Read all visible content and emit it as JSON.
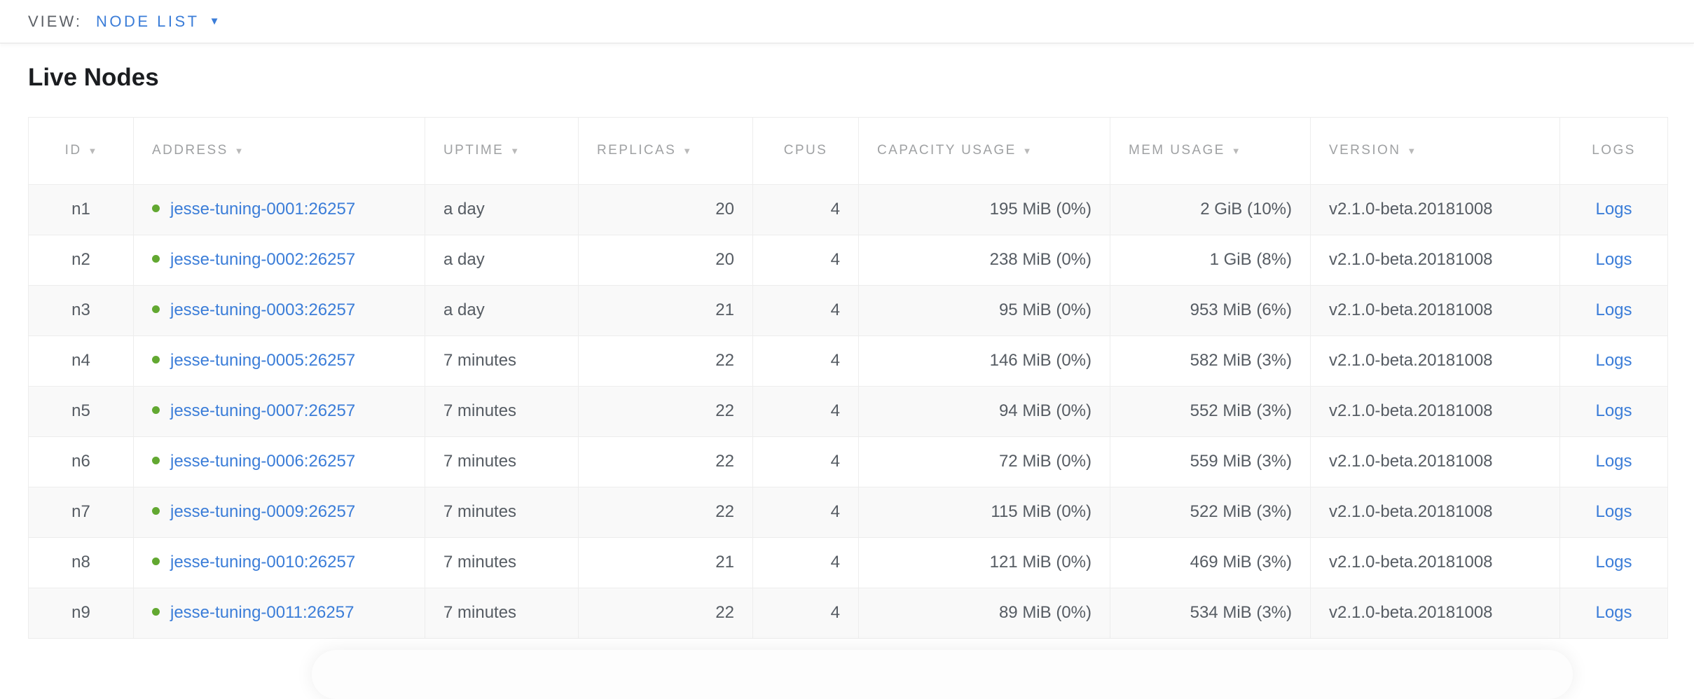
{
  "view_bar": {
    "label": "VIEW:",
    "selected_view": "NODE LIST"
  },
  "icons": {
    "dropdown_caret": "▼",
    "sort_caret": "▼"
  },
  "page": {
    "title": "Live Nodes"
  },
  "colors": {
    "link_blue": "#3b7dd8",
    "live_status_green": "#62a831",
    "header_gray": "#9fa1a3",
    "row_alt_gray": "#f9f9f9"
  },
  "table": {
    "headers": {
      "id": "ID",
      "address": "ADDRESS",
      "uptime": "UPTIME",
      "replicas": "REPLICAS",
      "cpus": "CPUS",
      "capacity": "CAPACITY USAGE",
      "mem": "MEM USAGE",
      "version": "VERSION",
      "logs": "LOGS"
    },
    "sortable_columns": [
      "ID",
      "ADDRESS",
      "UPTIME",
      "REPLICAS",
      "CAPACITY USAGE",
      "MEM USAGE",
      "VERSION"
    ],
    "rows": [
      {
        "id": "n1",
        "address": "jesse-tuning-0001:26257",
        "uptime": "a day",
        "replicas": "20",
        "cpus": "4",
        "capacity": "195 MiB (0%)",
        "mem": "2 GiB (10%)",
        "version": "v2.1.0-beta.20181008",
        "logs": "Logs"
      },
      {
        "id": "n2",
        "address": "jesse-tuning-0002:26257",
        "uptime": "a day",
        "replicas": "20",
        "cpus": "4",
        "capacity": "238 MiB (0%)",
        "mem": "1 GiB (8%)",
        "version": "v2.1.0-beta.20181008",
        "logs": "Logs"
      },
      {
        "id": "n3",
        "address": "jesse-tuning-0003:26257",
        "uptime": "a day",
        "replicas": "21",
        "cpus": "4",
        "capacity": "95 MiB (0%)",
        "mem": "953 MiB (6%)",
        "version": "v2.1.0-beta.20181008",
        "logs": "Logs"
      },
      {
        "id": "n4",
        "address": "jesse-tuning-0005:26257",
        "uptime": "7 minutes",
        "replicas": "22",
        "cpus": "4",
        "capacity": "146 MiB (0%)",
        "mem": "582 MiB (3%)",
        "version": "v2.1.0-beta.20181008",
        "logs": "Logs"
      },
      {
        "id": "n5",
        "address": "jesse-tuning-0007:26257",
        "uptime": "7 minutes",
        "replicas": "22",
        "cpus": "4",
        "capacity": "94 MiB (0%)",
        "mem": "552 MiB (3%)",
        "version": "v2.1.0-beta.20181008",
        "logs": "Logs"
      },
      {
        "id": "n6",
        "address": "jesse-tuning-0006:26257",
        "uptime": "7 minutes",
        "replicas": "22",
        "cpus": "4",
        "capacity": "72 MiB (0%)",
        "mem": "559 MiB (3%)",
        "version": "v2.1.0-beta.20181008",
        "logs": "Logs"
      },
      {
        "id": "n7",
        "address": "jesse-tuning-0009:26257",
        "uptime": "7 minutes",
        "replicas": "22",
        "cpus": "4",
        "capacity": "115 MiB (0%)",
        "mem": "522 MiB (3%)",
        "version": "v2.1.0-beta.20181008",
        "logs": "Logs"
      },
      {
        "id": "n8",
        "address": "jesse-tuning-0010:26257",
        "uptime": "7 minutes",
        "replicas": "21",
        "cpus": "4",
        "capacity": "121 MiB (0%)",
        "mem": "469 MiB (3%)",
        "version": "v2.1.0-beta.20181008",
        "logs": "Logs"
      },
      {
        "id": "n9",
        "address": "jesse-tuning-0011:26257",
        "uptime": "7 minutes",
        "replicas": "22",
        "cpus": "4",
        "capacity": "89 MiB (0%)",
        "mem": "534 MiB (3%)",
        "version": "v2.1.0-beta.20181008",
        "logs": "Logs"
      }
    ]
  }
}
